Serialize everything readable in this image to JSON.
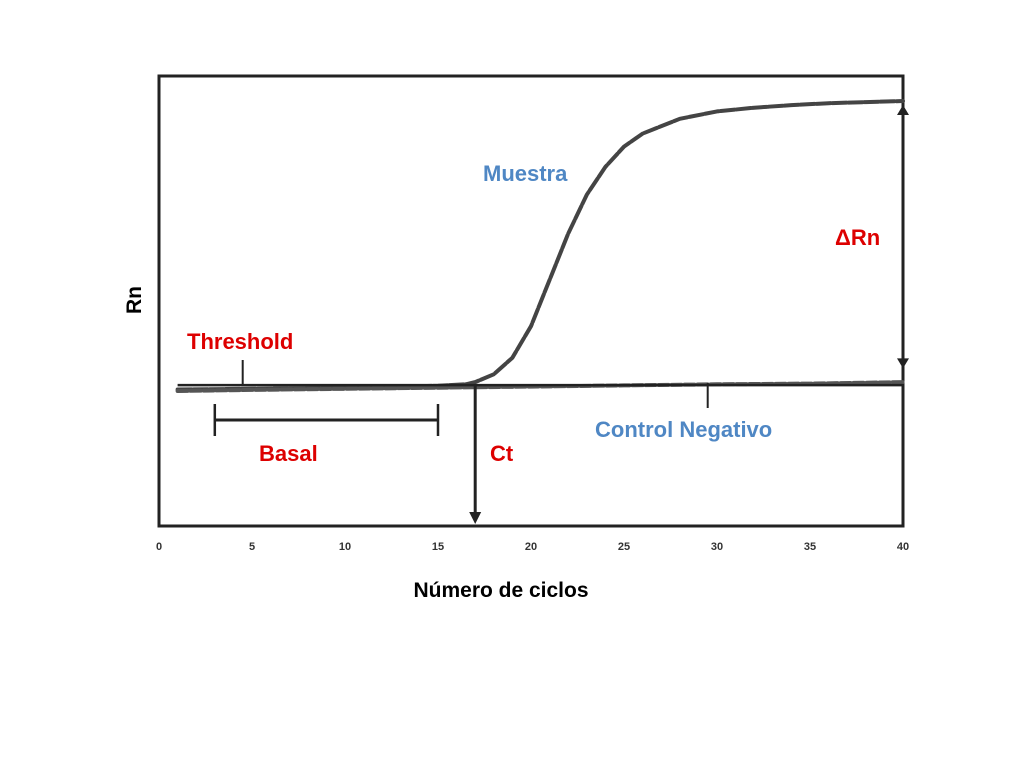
{
  "chart_data": {
    "type": "line",
    "xlabel": "Número de ciclos",
    "ylabel": "Rn",
    "xlim": [
      0,
      40
    ],
    "x_ticks": [
      0,
      5,
      10,
      15,
      20,
      25,
      30,
      35,
      40
    ],
    "y_ticks": [],
    "grid": false,
    "legend": "none",
    "series": [
      {
        "name": "Muestra",
        "color": "#444444",
        "x": [
          1,
          5,
          10,
          15,
          16.5,
          17,
          18,
          19,
          20,
          21,
          22,
          23,
          24,
          25,
          26,
          28,
          30,
          32,
          34,
          36,
          38,
          40
        ],
        "y": [
          0.4,
          0.6,
          0.9,
          1.4,
          1.8,
          2.4,
          4.5,
          9.0,
          17.5,
          30.0,
          42.5,
          53.0,
          60.5,
          66.0,
          69.5,
          73.5,
          75.5,
          76.5,
          77.2,
          77.7,
          78.0,
          78.3
        ]
      },
      {
        "name": "Control Negativo",
        "color": "#555555",
        "x": [
          1,
          5,
          10,
          15,
          20,
          25,
          30,
          35,
          40
        ],
        "y": [
          0.0,
          0.3,
          0.6,
          0.9,
          1.2,
          1.5,
          1.8,
          2.0,
          2.4
        ]
      }
    ],
    "threshold": {
      "y": 1.6,
      "label": "Threshold",
      "color": "#222222"
    },
    "ct": {
      "x": 17,
      "label": "Ct"
    },
    "basal": {
      "x_start": 3,
      "x_end": 15,
      "label": "Basal"
    },
    "delta_rn": {
      "x": 40,
      "y_from": 4.5,
      "y_to": 78.3,
      "label": "ΔRn"
    },
    "annotations": {
      "muestra_color": "#4f87c4",
      "control_color": "#4f87c4",
      "red_color": "#dd0000"
    }
  }
}
